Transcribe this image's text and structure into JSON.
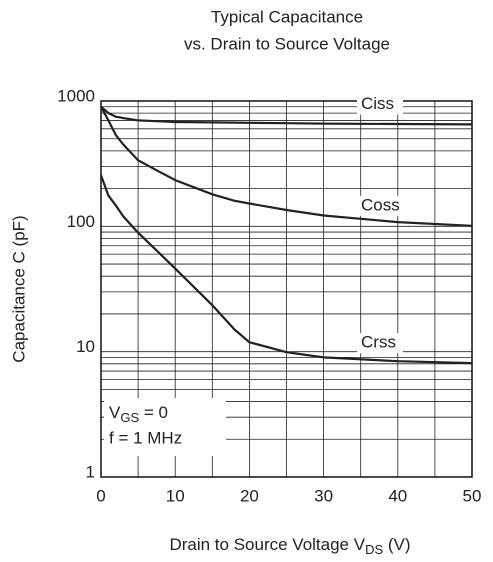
{
  "chart_data": {
    "type": "line",
    "title": [
      "Typical Capacitance",
      "vs. Drain to Source Voltage"
    ],
    "ylabel": "Capacitance C (pF)",
    "xlabel": [
      "Drain to Source Voltage V",
      "DS",
      " (V)"
    ],
    "annotations": [
      [
        "V",
        "GS",
        " = 0"
      ],
      "f = 1 MHz"
    ],
    "yscale": "log",
    "grid": true,
    "xlim": [
      0,
      50
    ],
    "xticks": [
      0,
      10,
      20,
      30,
      40,
      50
    ],
    "ylim": [
      1,
      1000
    ],
    "yticks": [
      1,
      10,
      100,
      1000
    ],
    "x": [
      0,
      1,
      2,
      3,
      5,
      7.5,
      10,
      15,
      18,
      20,
      25,
      30,
      40,
      50
    ],
    "series": [
      {
        "name": "Ciss",
        "color": "#222222",
        "values": [
          900,
          800,
          750,
          730,
          700,
          690,
          680,
          675,
          672,
          670,
          665,
          660,
          655,
          650
        ]
      },
      {
        "name": "Coss",
        "color": "#222222",
        "values": [
          900,
          700,
          535,
          450,
          337,
          280,
          234,
          180,
          160,
          152,
          135,
          122,
          108,
          101
        ]
      },
      {
        "name": "Crss",
        "color": "#222222",
        "values": [
          256,
          176,
          147,
          120,
          89,
          64,
          46,
          23.5,
          15,
          11.9,
          9.9,
          9.0,
          8.4,
          8.1
        ]
      }
    ]
  }
}
